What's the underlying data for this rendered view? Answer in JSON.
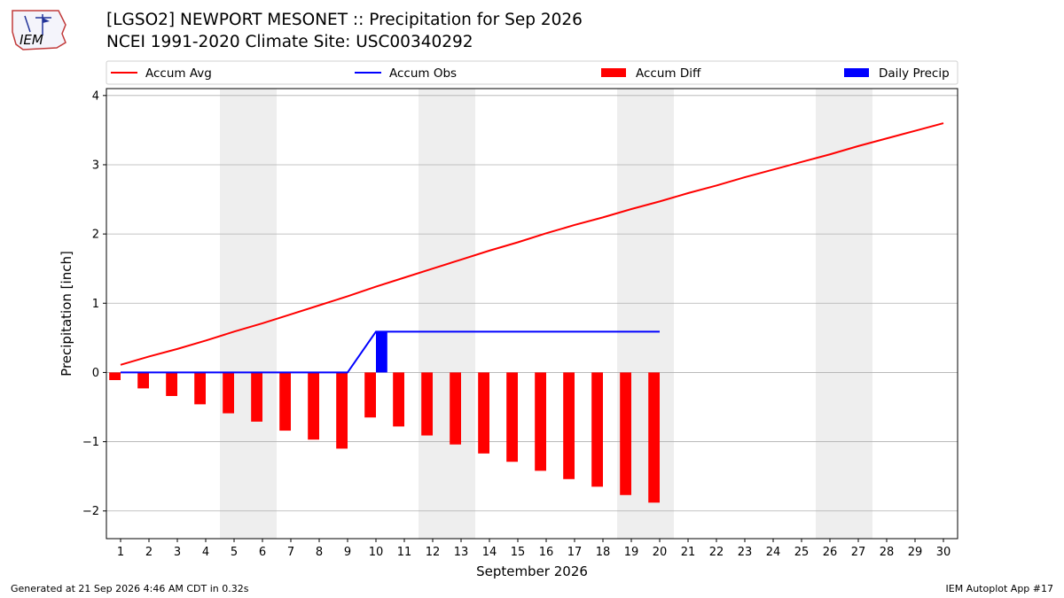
{
  "header": {
    "title_line1": "[LGSO2] NEWPORT MESONET :: Precipitation for Sep 2026",
    "title_line2": "NCEI 1991-2020 Climate Site: USC00340292",
    "logo_text": "IEM"
  },
  "footer": {
    "generated": "Generated at 21 Sep 2026 4:46 AM CDT in 0.32s",
    "app": "IEM Autoplot App #17"
  },
  "colors": {
    "avg": "#ff0000",
    "obs": "#0000ff",
    "diff": "#ff0000",
    "daily": "#0000ff",
    "weekend_shade": "#eeeeee",
    "grid": "#b0b0b0"
  },
  "chart_data": {
    "type": "bar",
    "xlabel": "September 2026",
    "ylabel": "Precipitation [inch]",
    "ylim": [
      -2.4,
      4.1
    ],
    "yticks": [
      4,
      3,
      2,
      1,
      0,
      -1,
      -2
    ],
    "ytick_labels": [
      "4",
      "3",
      "2",
      "1",
      "0",
      "−1",
      "−2"
    ],
    "x_days": [
      1,
      2,
      3,
      4,
      5,
      6,
      7,
      8,
      9,
      10,
      11,
      12,
      13,
      14,
      15,
      16,
      17,
      18,
      19,
      20,
      21,
      22,
      23,
      24,
      25,
      26,
      27,
      28,
      29,
      30
    ],
    "xtick_labels": [
      "1",
      "2",
      "3",
      "4",
      "5",
      "6",
      "7",
      "8",
      "9",
      "10",
      "11",
      "12",
      "13",
      "14",
      "15",
      "16",
      "17",
      "18",
      "19",
      "20",
      "21",
      "22",
      "23",
      "24",
      "25",
      "26",
      "27",
      "28",
      "29",
      "30"
    ],
    "weekend_days": [
      5,
      6,
      12,
      13,
      19,
      20,
      26,
      27
    ],
    "grid": "horizontal",
    "legend_position": "top",
    "legend": [
      "Accum Avg",
      "Accum Obs",
      "Accum Diff",
      "Daily Precip"
    ],
    "series": [
      {
        "name": "Accum Avg",
        "kind": "line",
        "values": [
          0.11,
          0.23,
          0.34,
          0.46,
          0.59,
          0.71,
          0.84,
          0.97,
          1.1,
          1.24,
          1.37,
          1.5,
          1.63,
          1.76,
          1.88,
          2.01,
          2.13,
          2.24,
          2.36,
          2.47,
          2.59,
          2.7,
          2.82,
          2.93,
          3.04,
          3.15,
          3.27,
          3.38,
          3.49,
          3.6
        ]
      },
      {
        "name": "Accum Obs",
        "kind": "line",
        "values": [
          0,
          0,
          0,
          0,
          0,
          0,
          0,
          0,
          0,
          0.59,
          0.59,
          0.59,
          0.59,
          0.59,
          0.59,
          0.59,
          0.59,
          0.59,
          0.59,
          0.59
        ]
      },
      {
        "name": "Accum Diff",
        "kind": "bar",
        "values": [
          -0.11,
          -0.23,
          -0.34,
          -0.46,
          -0.59,
          -0.71,
          -0.84,
          -0.97,
          -1.1,
          -0.65,
          -0.78,
          -0.91,
          -1.04,
          -1.17,
          -1.29,
          -1.42,
          -1.54,
          -1.65,
          -1.77,
          -1.88
        ]
      },
      {
        "name": "Daily Precip",
        "kind": "bar",
        "values": [
          0,
          0,
          0,
          0,
          0,
          0,
          0,
          0,
          0,
          0.59,
          0,
          0,
          0,
          0,
          0,
          0,
          0,
          0,
          0,
          0
        ]
      }
    ]
  }
}
